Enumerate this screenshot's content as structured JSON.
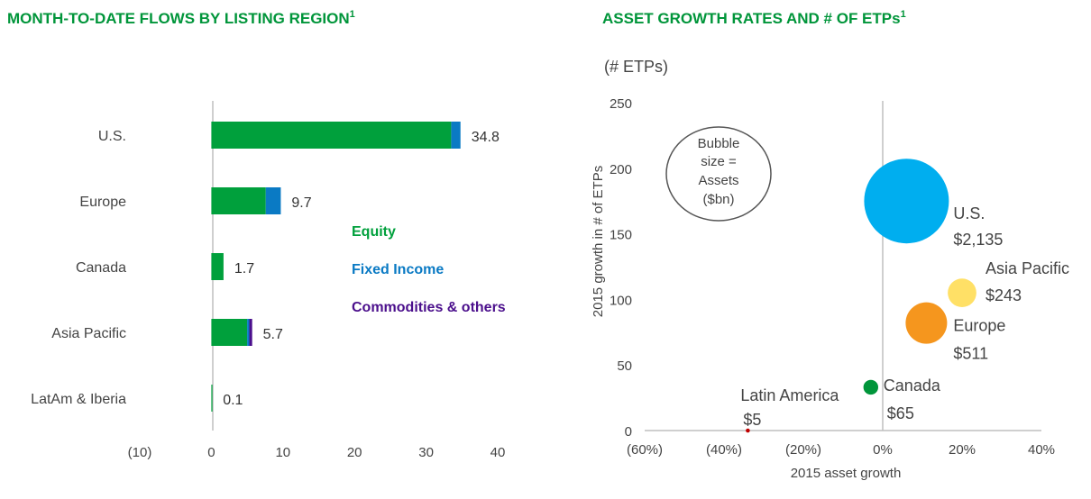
{
  "colors": {
    "title": "#00953a",
    "equity": "#00a03c",
    "fixed_income": "#0a7ac4",
    "commodities": "#4b0f8c",
    "us": "#00aeef",
    "asia_pacific": "#ffe066",
    "europe": "#f5961e",
    "canada": "#00953a",
    "latam": "#c00000",
    "axis": "#bfbfbf"
  },
  "chart_data": [
    {
      "type": "bar",
      "orientation": "horizontal",
      "stacked": true,
      "title": "MONTH-TO-DATE FLOWS BY LISTING REGION",
      "title_sup": "1",
      "categories": [
        "U.S.",
        "Europe",
        "Canada",
        "Asia Pacific",
        "LatAm & Iberia"
      ],
      "series": [
        {
          "name": "Equity",
          "values": [
            33.5,
            7.6,
            1.7,
            5.0,
            0.1
          ]
        },
        {
          "name": "Fixed Income",
          "values": [
            1.3,
            2.1,
            0.0,
            0.3,
            0.0
          ]
        },
        {
          "name": "Commodities & others",
          "values": [
            0.0,
            0.0,
            0.0,
            0.4,
            0.0
          ]
        }
      ],
      "totals": [
        "34.8",
        "9.7",
        "1.7",
        "5.7",
        "0.1"
      ],
      "xlim": [
        -10,
        40
      ],
      "xticks": [
        -10,
        0,
        10,
        20,
        30,
        40
      ],
      "xtick_labels": [
        "(10)",
        "0",
        "10",
        "20",
        "30",
        "40"
      ],
      "legend": [
        "Equity",
        "Fixed Income",
        "Commodities & others"
      ]
    },
    {
      "type": "bubble",
      "title": "ASSET GROWTH RATES AND # OF ETPs",
      "title_sup": "1",
      "y_unit_label": "(# ETPs)",
      "xlabel": "2015 asset growth",
      "ylabel": "2015 growth in # of ETPs",
      "xlim": [
        -60,
        40
      ],
      "ylim": [
        0,
        250
      ],
      "xticks": [
        -60,
        -40,
        -20,
        0,
        20,
        40
      ],
      "xtick_labels": [
        "(60%)",
        "(40%)",
        "(20%)",
        "0%",
        "20%",
        "40%"
      ],
      "yticks": [
        0,
        50,
        100,
        150,
        200,
        250
      ],
      "ytick_labels": [
        "0",
        "50",
        "100",
        "150",
        "200",
        "250"
      ],
      "note": [
        "Bubble",
        "size =",
        "Assets",
        "($bn)"
      ],
      "points": [
        {
          "name": "U.S.",
          "label": "$2,135",
          "x": 6,
          "y": 175,
          "size": 2135,
          "color": "#00aeef"
        },
        {
          "name": "Asia Pacific",
          "label": "$243",
          "x": 20,
          "y": 105,
          "size": 243,
          "color": "#ffe066"
        },
        {
          "name": "Europe",
          "label": "$511",
          "x": 11,
          "y": 82,
          "size": 511,
          "color": "#f5961e"
        },
        {
          "name": "Canada",
          "label": "$65",
          "x": -3,
          "y": 33,
          "size": 65,
          "color": "#00953a"
        },
        {
          "name": "Latin America",
          "label": "$5",
          "x": -34,
          "y": 0,
          "size": 5,
          "color": "#c00000"
        }
      ]
    }
  ]
}
